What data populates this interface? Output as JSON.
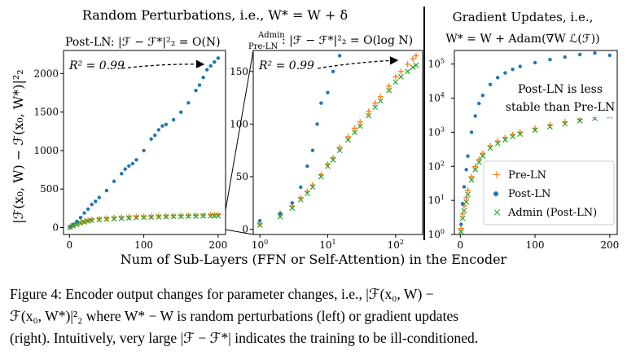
{
  "figure": {
    "left_title": "Random Perturbations, i.e., W* = W + δ",
    "right_title_line1": "Gradient Updates, i.e.,",
    "right_title_line2": "W* = W + Adam(∇W ℒ(ℱ))",
    "ylabel": "|ℱ(x₀, W) − ℱ(x₀, W*)|²₂",
    "xlabel": "Num of Sub-Layers (FFN or Self-Attention) in the Encoder",
    "annotation_postln": "Post-LN: |ℱ − ℱ*|²₂ = O(N)",
    "annotation_admin_line1": "Admin",
    "annotation_admin_line2": "Pre-LN",
    "annotation_admin_formula": ": |ℱ − ℱ*|²₂ = O(log N)",
    "r2_label_1": "R² = 0.99",
    "r2_label_2": "R² = 0.99",
    "note_line1": "Post-LN is less",
    "note_line2": "stable than Pre-LN"
  },
  "caption": {
    "line1": "Figure 4:  Encoder output changes for parameter changes, i.e., |ℱ(x₀, W) −",
    "line2": "ℱ(x₀, W*)|²₂ where W* − W is random perturbations (left) or gradient updates",
    "line3": "(right). Intuitively, very large |ℱ − ℱ*| indicates the training to be ill-conditioned."
  },
  "chart_data": [
    {
      "type": "scatter",
      "panel": "left-linear",
      "xlim": [
        -8,
        210
      ],
      "ylim": [
        -90,
        2300
      ],
      "xticks": [
        0,
        100,
        200
      ],
      "yticks": [
        0,
        500,
        1000,
        1500,
        2000
      ],
      "series": [
        {
          "name": "Pre-LN",
          "color": "#ff7f0e",
          "marker": "+",
          "x": [
            1,
            5,
            10,
            15,
            20,
            25,
            30,
            40,
            50,
            60,
            70,
            80,
            90,
            100,
            110,
            120,
            130,
            140,
            150,
            160,
            170,
            180,
            190,
            195,
            200
          ],
          "y": [
            5,
            30,
            50,
            70,
            85,
            95,
            105,
            115,
            122,
            128,
            133,
            138,
            142,
            145,
            148,
            151,
            153,
            155,
            157,
            159,
            161,
            163,
            165,
            166,
            167
          ]
        },
        {
          "name": "Post-LN",
          "color": "#1f77b4",
          "marker": "o",
          "x": [
            1,
            5,
            10,
            15,
            20,
            25,
            30,
            35,
            40,
            50,
            60,
            70,
            75,
            80,
            85,
            90,
            100,
            110,
            115,
            120,
            125,
            130,
            140,
            150,
            160,
            170,
            175,
            180,
            185,
            190,
            195,
            200
          ],
          "y": [
            10,
            40,
            80,
            130,
            190,
            240,
            300,
            340,
            390,
            480,
            600,
            700,
            760,
            800,
            830,
            880,
            1000,
            1150,
            1200,
            1270,
            1320,
            1340,
            1400,
            1500,
            1620,
            1780,
            1850,
            1950,
            2050,
            2100,
            2150,
            2200
          ]
        },
        {
          "name": "Admin (Post-LN)",
          "color": "#2ca02c",
          "marker": "x",
          "x": [
            1,
            5,
            10,
            15,
            20,
            25,
            30,
            40,
            50,
            60,
            70,
            80,
            90,
            100,
            110,
            120,
            130,
            140,
            150,
            160,
            170,
            180,
            190,
            195,
            200
          ],
          "y": [
            3,
            22,
            40,
            58,
            72,
            84,
            94,
            104,
            110,
            116,
            121,
            126,
            130,
            133,
            136,
            139,
            141,
            143,
            145,
            147,
            149,
            151,
            152,
            153,
            154
          ]
        }
      ]
    },
    {
      "type": "scatter",
      "panel": "middle-logx",
      "xscale": "log",
      "xlim": [
        0.8,
        250
      ],
      "ylim": [
        -5,
        170
      ],
      "xticks": [
        "10^0",
        "10^1",
        "10^2"
      ],
      "yticks": [
        0,
        50,
        100,
        150
      ],
      "series": [
        {
          "name": "Pre-LN",
          "color": "#ff7f0e",
          "marker": "+",
          "x": [
            1,
            2,
            3,
            4,
            5,
            6,
            8,
            10,
            12,
            15,
            20,
            25,
            30,
            40,
            50,
            60,
            80,
            100,
            120,
            150,
            180,
            200
          ],
          "y": [
            5,
            15,
            22,
            30,
            36,
            42,
            52,
            62,
            68,
            78,
            88,
            96,
            102,
            112,
            120,
            126,
            136,
            145,
            150,
            157,
            162,
            165
          ]
        },
        {
          "name": "Post-LN",
          "color": "#1f77b4",
          "marker": "o",
          "x": [
            1,
            2,
            3,
            4,
            5,
            6,
            7,
            8,
            10,
            12,
            15
          ],
          "y": [
            8,
            15,
            25,
            40,
            60,
            75,
            100,
            120,
            130,
            150,
            165
          ]
        },
        {
          "name": "Admin (Post-LN)",
          "color": "#2ca02c",
          "marker": "x",
          "x": [
            1,
            2,
            3,
            4,
            5,
            6,
            8,
            10,
            12,
            15,
            20,
            25,
            30,
            40,
            50,
            60,
            80,
            100,
            120,
            150,
            180,
            200
          ],
          "y": [
            4,
            12,
            20,
            28,
            34,
            40,
            50,
            60,
            66,
            75,
            85,
            92,
            98,
            108,
            116,
            122,
            132,
            140,
            145,
            150,
            154,
            156
          ]
        }
      ]
    },
    {
      "type": "scatter",
      "panel": "right-logy",
      "yscale": "log",
      "xlim": [
        -8,
        210
      ],
      "ylim": [
        1,
        250000
      ],
      "xticks": [
        0,
        100,
        200
      ],
      "yticks": [
        "10^0",
        "10^1",
        "10^2",
        "10^3",
        "10^4",
        "10^5"
      ],
      "legend": "bottom-left",
      "series": [
        {
          "name": "Pre-LN",
          "color": "#ff7f0e",
          "marker": "+",
          "x": [
            1,
            3,
            5,
            8,
            10,
            15,
            20,
            25,
            30,
            40,
            50,
            60,
            70,
            80,
            100,
            120,
            140,
            160,
            180,
            200
          ],
          "y": [
            1.5,
            4,
            7,
            12,
            20,
            50,
            100,
            160,
            240,
            400,
            550,
            700,
            850,
            1000,
            1300,
            1650,
            2000,
            2400,
            2800,
            3300
          ]
        },
        {
          "name": "Post-LN",
          "color": "#1f77b4",
          "marker": "o",
          "x": [
            1,
            3,
            5,
            8,
            10,
            15,
            20,
            25,
            30,
            40,
            50,
            60,
            70,
            80,
            100,
            120,
            140,
            160,
            180,
            200
          ],
          "y": [
            2,
            8,
            25,
            80,
            200,
            1000,
            3000,
            7000,
            12000,
            25000,
            40000,
            55000,
            70000,
            85000,
            110000,
            135000,
            160000,
            190000,
            210000,
            180000
          ]
        },
        {
          "name": "Admin (Post-LN)",
          "color": "#2ca02c",
          "marker": "x",
          "x": [
            1,
            3,
            5,
            8,
            10,
            15,
            20,
            25,
            30,
            40,
            50,
            60,
            70,
            80,
            100,
            120,
            140,
            160,
            180,
            200
          ],
          "y": [
            1.2,
            3,
            5,
            9,
            15,
            40,
            80,
            130,
            200,
            340,
            470,
            600,
            740,
            880,
            1150,
            1450,
            1780,
            2150,
            2550,
            3000
          ]
        }
      ]
    }
  ]
}
